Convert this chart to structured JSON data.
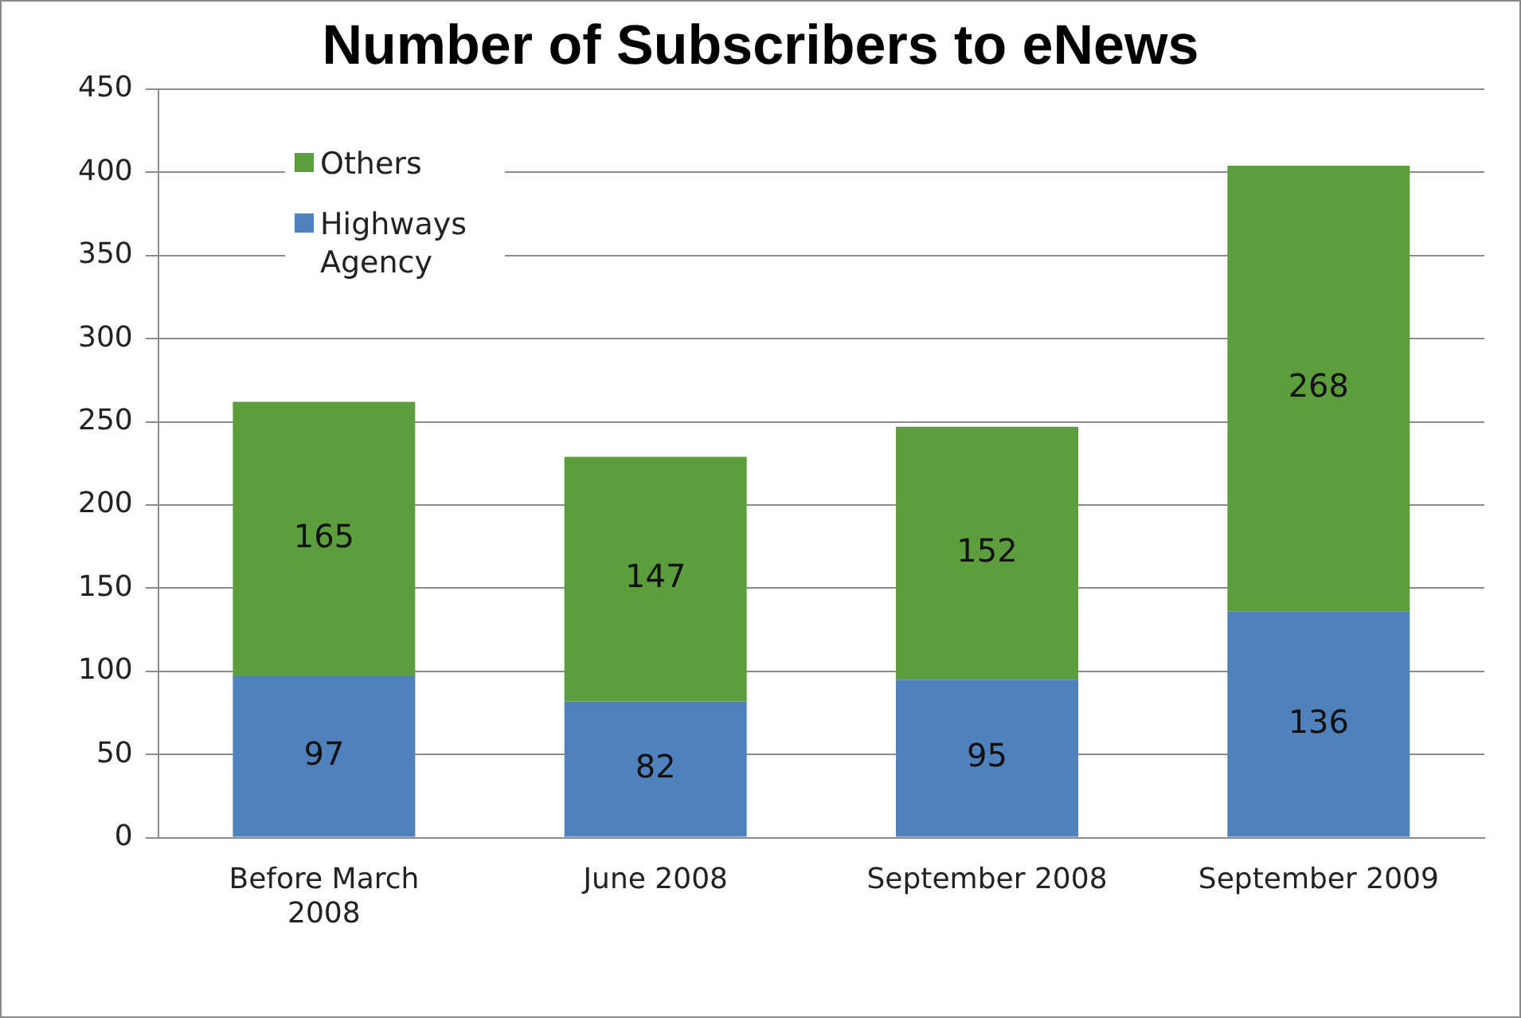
{
  "chart_data": {
    "type": "bar",
    "title": "Number of Subscribers to eNews",
    "stacked": true,
    "categories": [
      "Before March 2008",
      "June 2008",
      "September 2008",
      "September 2009"
    ],
    "series": [
      {
        "name": "Highways Agency",
        "color": "#4f81bd",
        "values": [
          97,
          82,
          95,
          136
        ]
      },
      {
        "name": "Others",
        "color": "#5c9e3c",
        "values": [
          165,
          147,
          152,
          268
        ]
      }
    ],
    "ylim": [
      0,
      450
    ],
    "yticks": [
      0,
      50,
      100,
      150,
      200,
      250,
      300,
      350,
      400,
      450
    ],
    "grid": "y",
    "legend": "top left",
    "data_labels": true
  }
}
